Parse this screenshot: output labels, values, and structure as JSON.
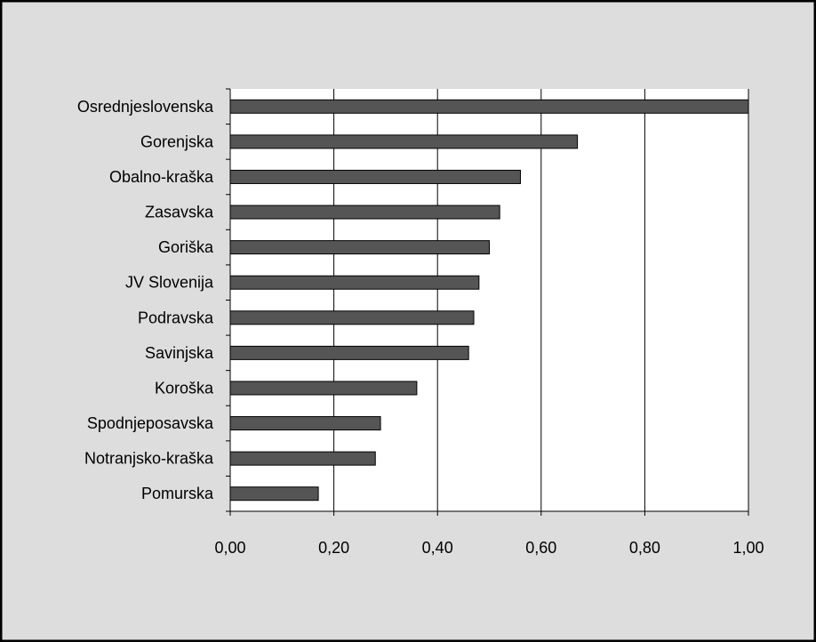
{
  "chart_data": {
    "type": "bar",
    "orientation": "horizontal",
    "categories": [
      "Osrednjeslovenska",
      "Gorenjska",
      "Obalno-kraška",
      "Zasavska",
      "Goriška",
      "JV Slovenija",
      "Podravska",
      "Savinjska",
      "Koroška",
      "Spodnjeposavska",
      "Notranjsko-kraška",
      "Pomurska"
    ],
    "values": [
      1.0,
      0.67,
      0.56,
      0.52,
      0.5,
      0.48,
      0.47,
      0.46,
      0.36,
      0.29,
      0.28,
      0.17
    ],
    "xlim": [
      0,
      1
    ],
    "x_ticks": [
      "0,00",
      "0,20",
      "0,40",
      "0,60",
      "0,80",
      "1,00"
    ],
    "title": "",
    "xlabel": "",
    "ylabel": "",
    "grid": "vertical gridlines",
    "legend": "none",
    "colors": {
      "bar": "#555555",
      "bar_stroke": "#000000",
      "outer_background": "#dddddd",
      "plot_background": "#ffffff",
      "frame": "#000000"
    }
  }
}
